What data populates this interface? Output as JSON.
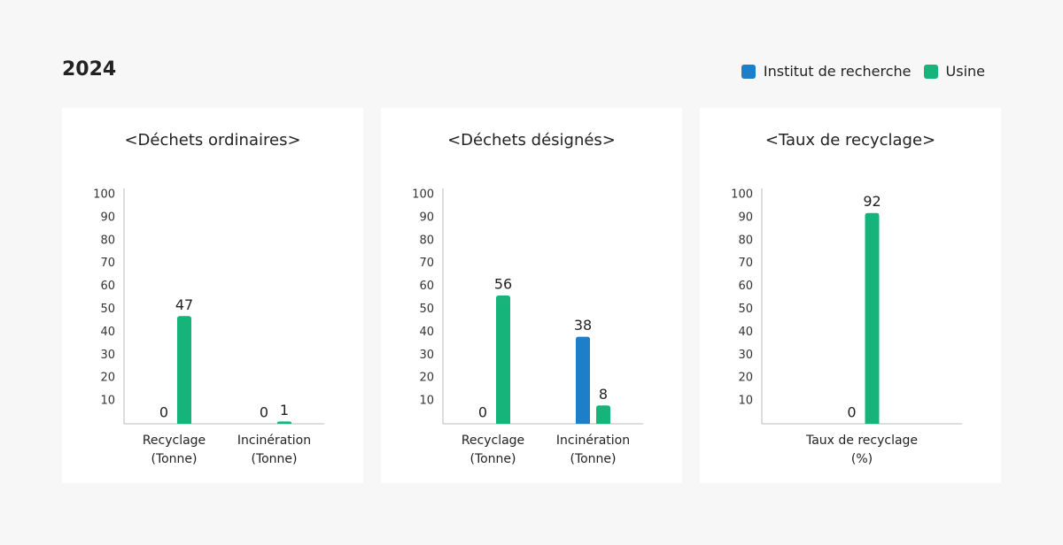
{
  "title": "2024",
  "chart_data": [
    {
      "type": "bar",
      "title": "<Déchets ordinaires>",
      "categories": [
        "Recyclage (Tonne)",
        "Incinération (Tonne)"
      ],
      "series": [
        {
          "name": "Institut de recherche",
          "color": "#1e7ec8",
          "values": [
            0,
            0
          ]
        },
        {
          "name": "Usine",
          "color": "#16b47a",
          "values": [
            47,
            1
          ]
        }
      ],
      "ylim": [
        0,
        100
      ],
      "yticks": [
        10,
        20,
        30,
        40,
        50,
        60,
        70,
        80,
        90,
        100
      ]
    },
    {
      "type": "bar",
      "title": "<Déchets désignés>",
      "categories": [
        "Recyclage (Tonne)",
        "Incinération (Tonne)"
      ],
      "series": [
        {
          "name": "Institut de recherche",
          "color": "#1e7ec8",
          "values": [
            0,
            38
          ]
        },
        {
          "name": "Usine",
          "color": "#16b47a",
          "values": [
            56,
            8
          ]
        }
      ],
      "ylim": [
        0,
        100
      ],
      "yticks": [
        10,
        20,
        30,
        40,
        50,
        60,
        70,
        80,
        90,
        100
      ]
    },
    {
      "type": "bar",
      "title": "<Taux de recyclage>",
      "categories": [
        "Taux de recyclage (%)"
      ],
      "series": [
        {
          "name": "Institut de recherche",
          "color": "#1e7ec8",
          "values": [
            0
          ]
        },
        {
          "name": "Usine",
          "color": "#16b47a",
          "values": [
            92
          ]
        }
      ],
      "ylim": [
        0,
        100
      ],
      "yticks": [
        10,
        20,
        30,
        40,
        50,
        60,
        70,
        80,
        90,
        100
      ]
    }
  ]
}
